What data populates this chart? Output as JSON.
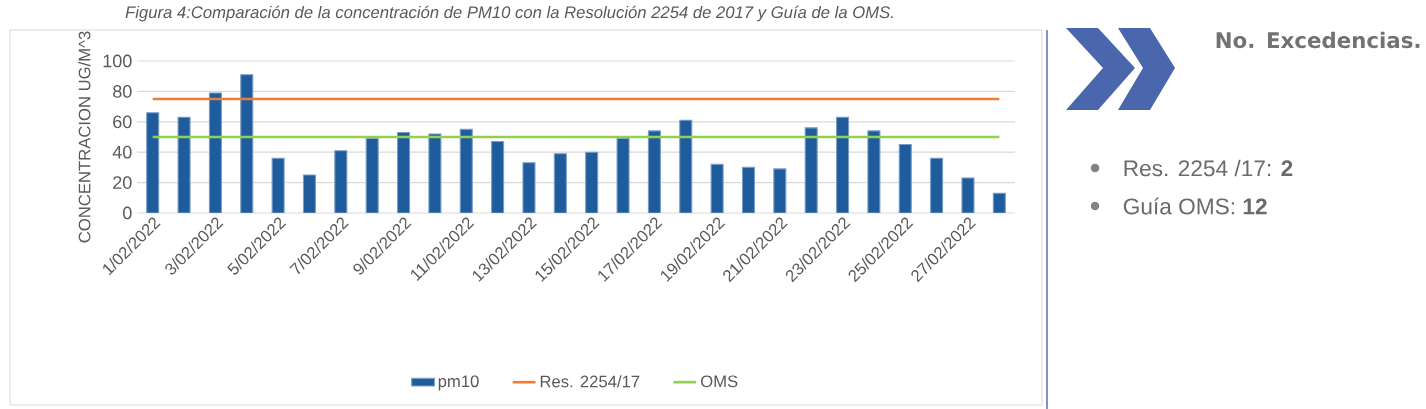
{
  "chart_data": {
    "type": "bar",
    "title": "Figura 4:Comparación de la concentración de PM10 con la Resolución 2254 de 2017 y Guía de la OMS.",
    "ylabel": "CONCENTRACION UG/M^3",
    "categories": [
      "1/02/2022",
      null,
      "3/02/2022",
      null,
      "5/02/2022",
      null,
      "7/02/2022",
      null,
      "9/02/2022",
      null,
      "11/02/2022",
      null,
      "13/02/2022",
      null,
      "15/02/2022",
      null,
      "17/02/2022",
      null,
      "19/02/2022",
      null,
      "21/02/2022",
      null,
      "23/02/2022",
      null,
      "25/02/2022",
      null,
      "27/02/2022",
      null
    ],
    "series": [
      {
        "name": "pm10",
        "color": "#1f5c9e",
        "values": [
          66,
          63,
          79,
          91,
          36,
          25,
          41,
          49,
          53,
          52,
          55,
          47,
          33,
          39,
          40,
          49,
          54,
          61,
          32,
          30,
          29,
          56,
          63,
          54,
          45,
          36,
          23,
          13
        ]
      },
      {
        "name": "Res. 2254/17",
        "type": "line",
        "color": "#ed7d31",
        "values": [
          75,
          75,
          75,
          75,
          75,
          75,
          75,
          75,
          75,
          75,
          75,
          75,
          75,
          75,
          75,
          75,
          75,
          75,
          75,
          75,
          75,
          75,
          75,
          75,
          75,
          75,
          75,
          75
        ]
      },
      {
        "name": "OMS",
        "type": "line",
        "color": "#92d050",
        "values": [
          50,
          50,
          50,
          50,
          50,
          50,
          50,
          50,
          50,
          50,
          50,
          50,
          50,
          50,
          50,
          50,
          50,
          50,
          50,
          50,
          50,
          50,
          50,
          50,
          50,
          50,
          50,
          50
        ]
      }
    ],
    "ylim": [
      0,
      100
    ],
    "yticks": [
      0,
      20,
      40,
      60,
      80,
      100
    ],
    "grid": "y",
    "legend": "bottom",
    "marker": "none",
    "annotations": [
      "No. Excedencias.",
      "Res. 2254 /17: **2**",
      "Guía OMS: **12**"
    ]
  }
}
